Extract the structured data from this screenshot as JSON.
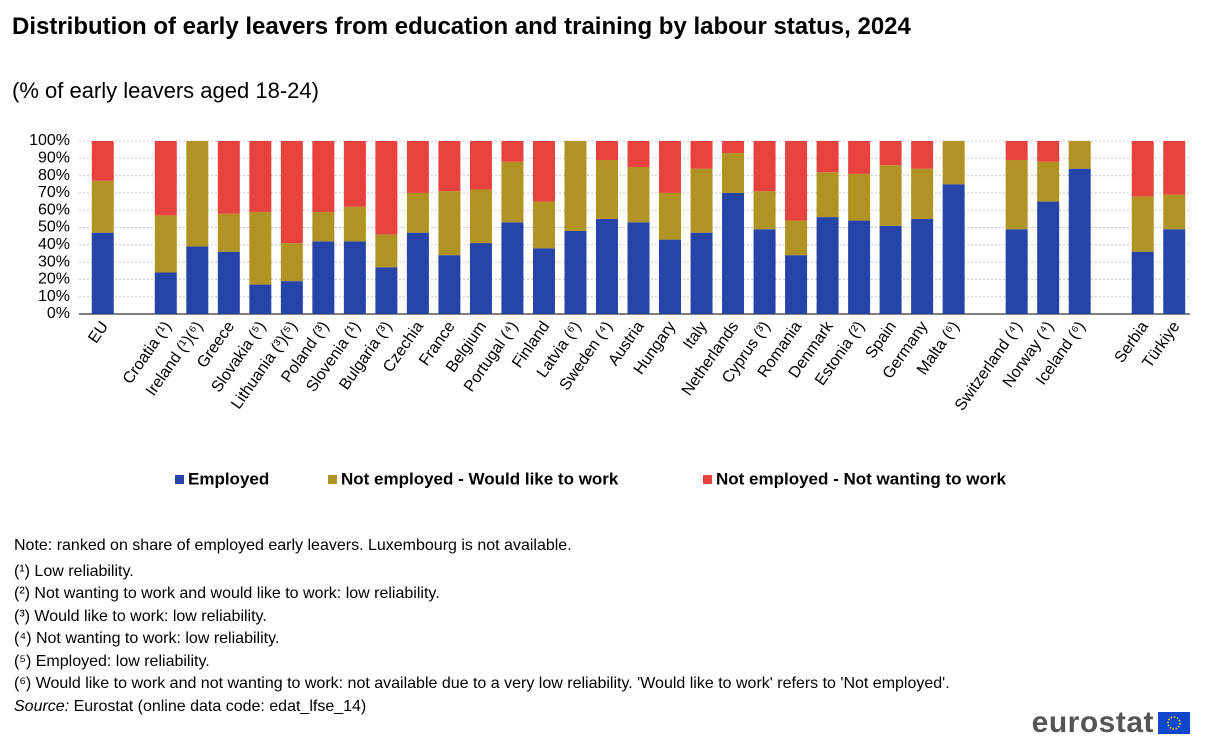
{
  "chart_data": {
    "type": "stacked_bar",
    "title": "Distribution of early leavers from education and training by labour status, 2024",
    "subtitle": "(% of early leavers aged 18-24)",
    "categories": [
      "EU",
      null,
      "Croatia (¹)",
      "Ireland (¹)(⁶)",
      "Greece",
      "Slovakia (⁵)",
      "Lithuania (³)(⁵)",
      "Poland (³)",
      "Slovenia (¹)",
      "Bulgaria (³)",
      "Czechia",
      "France",
      "Belgium",
      "Portugal (⁴)",
      "Finland",
      "Latvia (⁶)",
      "Sweden (⁴)",
      "Austria",
      "Hungary",
      "Italy",
      "Netherlands",
      "Cyprus (³)",
      "Romania",
      "Denmark",
      "Estonia (²)",
      "Spain",
      "Germany",
      "Malta (⁶)",
      null,
      "Switzerland (⁴)",
      "Norway (⁴)",
      "Iceland (⁶)",
      null,
      "Serbia",
      "Türkiye"
    ],
    "series": [
      {
        "name": "Employed",
        "color": "#2644a7",
        "values": [
          47,
          null,
          24,
          39,
          36,
          17,
          19,
          42,
          42,
          27,
          47,
          34,
          41,
          53,
          38,
          48,
          55,
          53,
          43,
          47,
          70,
          49,
          34,
          56,
          54,
          51,
          55,
          75,
          null,
          49,
          65,
          84,
          null,
          36,
          49
        ]
      },
      {
        "name": "Not employed - Would like to work",
        "color": "#b09322",
        "values": [
          30,
          null,
          33,
          61,
          22,
          42,
          22,
          17,
          20,
          19,
          23,
          37,
          31,
          35,
          27,
          52,
          34,
          32,
          27,
          37,
          23,
          22,
          20,
          26,
          27,
          35,
          29,
          25,
          null,
          40,
          23,
          16,
          null,
          32,
          20
        ]
      },
      {
        "name": "Not employed - Not wanting to work",
        "color": "#e8423f",
        "values": [
          23,
          null,
          43,
          null,
          42,
          41,
          59,
          41,
          38,
          54,
          30,
          29,
          28,
          12,
          35,
          null,
          11,
          15,
          30,
          16,
          7,
          29,
          46,
          18,
          19,
          14,
          16,
          null,
          null,
          11,
          12,
          null,
          null,
          32,
          31
        ]
      }
    ],
    "ylim": [
      0,
      100
    ],
    "yticks": [
      {
        "value": 0,
        "label": "0%"
      },
      {
        "value": 10,
        "label": "10%"
      },
      {
        "value": 20,
        "label": "20%"
      },
      {
        "value": 30,
        "label": "30%"
      },
      {
        "value": 40,
        "label": "40%"
      },
      {
        "value": 50,
        "label": "50%"
      },
      {
        "value": 60,
        "label": "60%"
      },
      {
        "value": 70,
        "label": "70%"
      },
      {
        "value": 80,
        "label": "80%"
      },
      {
        "value": 90,
        "label": "90%"
      },
      {
        "value": 100,
        "label": "100%"
      }
    ],
    "grid": true,
    "legend": "bottom"
  },
  "notes": {
    "note": "Note: ranked on share of employed early leavers. Luxembourg is not available.",
    "footnotes": [
      "(¹) Low reliability.",
      "(²) Not wanting to work and would like to work: low reliability.",
      "(³) Would like to work: low reliability.",
      "(⁴) Not wanting to work: low reliability.",
      "(⁵) Employed: low reliability.",
      "(⁶) Would like to work and not wanting to work: not available due to a very low reliability. 'Would like to work' refers to 'Not employed'."
    ],
    "source_label": "Source:",
    "source_text": "Eurostat (online data code: edat_lfse_14)"
  },
  "logo": "eurostat"
}
